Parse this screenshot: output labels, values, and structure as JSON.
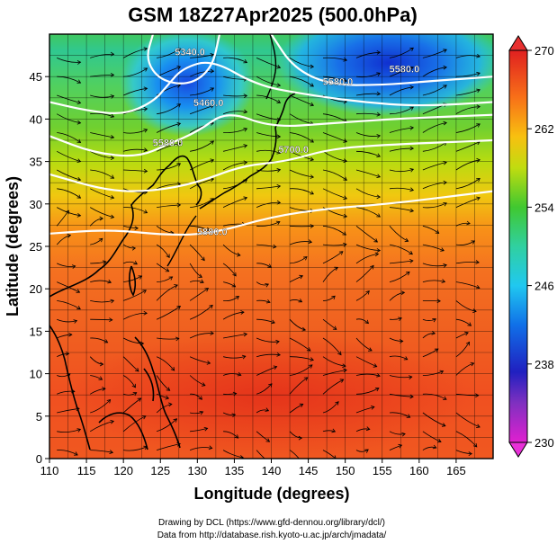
{
  "chart_data": {
    "type": "heatmap",
    "title": "GSM 18Z27Apr2025 (500.0hPa)",
    "xlabel": "Longitude (degrees)",
    "ylabel": "Latitude  (degrees)",
    "xlim": [
      110,
      170
    ],
    "ylim": [
      0,
      50
    ],
    "x_ticks": [
      110,
      115,
      120,
      125,
      130,
      135,
      140,
      145,
      150,
      155,
      160,
      165
    ],
    "y_ticks": [
      0,
      5,
      10,
      15,
      20,
      25,
      30,
      35,
      40,
      45
    ],
    "grid": true,
    "colorbar": {
      "ticks": [
        230,
        238,
        246,
        254,
        262,
        270
      ],
      "range": [
        230,
        270
      ],
      "placement": "right"
    },
    "contours": [
      {
        "label": "5880.0",
        "points": [
          [
            110,
            26.5
          ],
          [
            118,
            27
          ],
          [
            126,
            26.3
          ],
          [
            132,
            26.5
          ],
          [
            140,
            28.5
          ],
          [
            148,
            29.5
          ],
          [
            156,
            30
          ],
          [
            170,
            31.5
          ]
        ]
      },
      {
        "label": "5700.0",
        "points": [
          [
            110,
            33.5
          ],
          [
            118,
            31.5
          ],
          [
            124,
            31.5
          ],
          [
            130,
            32.5
          ],
          [
            136,
            34.5
          ],
          [
            142,
            35
          ],
          [
            148,
            36.5
          ],
          [
            156,
            37
          ],
          [
            170,
            37.5
          ]
        ]
      },
      {
        "label": "5580.0",
        "points": [
          [
            110,
            38
          ],
          [
            116,
            36
          ],
          [
            122,
            35.5
          ],
          [
            126,
            37
          ],
          [
            130,
            38.5
          ],
          [
            134,
            41
          ],
          [
            140,
            39
          ],
          [
            148,
            39.5
          ],
          [
            156,
            40
          ],
          [
            170,
            40.5
          ]
        ]
      },
      {
        "label": "5460.0",
        "points": [
          [
            110,
            42
          ],
          [
            115,
            41
          ],
          [
            120,
            40.5
          ],
          [
            124,
            42
          ],
          [
            126,
            44
          ],
          [
            128,
            46
          ],
          [
            132,
            47
          ],
          [
            138,
            44
          ],
          [
            144,
            43
          ],
          [
            152,
            42
          ],
          [
            160,
            41.5
          ],
          [
            170,
            42
          ]
        ]
      },
      {
        "label": "5580.0",
        "points": [
          [
            140,
            50
          ],
          [
            143,
            46
          ],
          [
            148,
            44
          ],
          [
            155,
            44
          ],
          [
            162,
            44.5
          ],
          [
            170,
            45
          ]
        ]
      },
      {
        "label": "5340.0",
        "points": [
          [
            124,
            50
          ],
          [
            123,
            47
          ],
          [
            125,
            44.5
          ],
          [
            129,
            44
          ],
          [
            132,
            46
          ],
          [
            133,
            50
          ]
        ]
      }
    ],
    "contour_label_positions": [
      {
        "text": "5340.0",
        "x": 129,
        "y": 47.5
      },
      {
        "text": "5460.0",
        "x": 131.5,
        "y": 41.5
      },
      {
        "text": "5580.0",
        "x": 126,
        "y": 36.8
      },
      {
        "text": "5700.0",
        "x": 143,
        "y": 36
      },
      {
        "text": "5880.0",
        "x": 132,
        "y": 26.3
      },
      {
        "text": "5580.0",
        "x": 149,
        "y": 44
      },
      {
        "text": "5580.0",
        "x": 158,
        "y": 45.5
      }
    ],
    "colormap": [
      "#e020e0",
      "#8040c0",
      "#2020c0",
      "#1050e0",
      "#2090f0",
      "#20c8e8",
      "#30d8b0",
      "#40d040",
      "#70d020",
      "#b8dc10",
      "#f0d010",
      "#f8a010",
      "#f87018",
      "#f04818",
      "#e02020"
    ]
  },
  "credits": {
    "line1": "Drawing by DCL (https://www.gfd-dennou.org/library/dcl/)",
    "line2": "Data from http://database.rish.kyoto-u.ac.jp/arch/jmadata/"
  }
}
